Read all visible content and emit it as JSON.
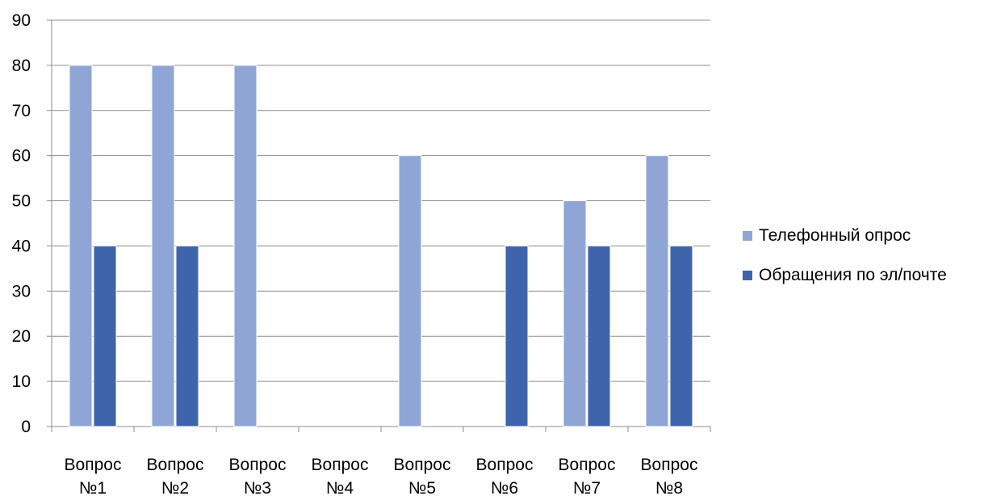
{
  "chart_data": {
    "type": "bar",
    "categories": [
      [
        "Вопрос",
        "№1"
      ],
      [
        "Вопрос",
        "№2"
      ],
      [
        "Вопрос",
        "№3"
      ],
      [
        "Вопрос",
        "№4"
      ],
      [
        "Вопрос",
        "№5"
      ],
      [
        "Вопрос",
        "№6"
      ],
      [
        "Вопрос",
        "№7"
      ],
      [
        "Вопрос",
        "№8"
      ]
    ],
    "series": [
      {
        "name": "Телефонный опрос",
        "color": "#8FA5D5",
        "values": [
          80,
          80,
          80,
          null,
          60,
          null,
          50,
          60
        ]
      },
      {
        "name": "Обращения по эл/почте",
        "color": "#3E64AC",
        "values": [
          40,
          40,
          null,
          null,
          null,
          40,
          40,
          40
        ]
      }
    ],
    "ylim": [
      0,
      90
    ],
    "yticks": [
      "0",
      "10",
      "20",
      "30",
      "40",
      "50",
      "60",
      "70",
      "80",
      "90"
    ],
    "grid": true,
    "legend_position": "right",
    "title": "",
    "xlabel": "",
    "ylabel": ""
  }
}
